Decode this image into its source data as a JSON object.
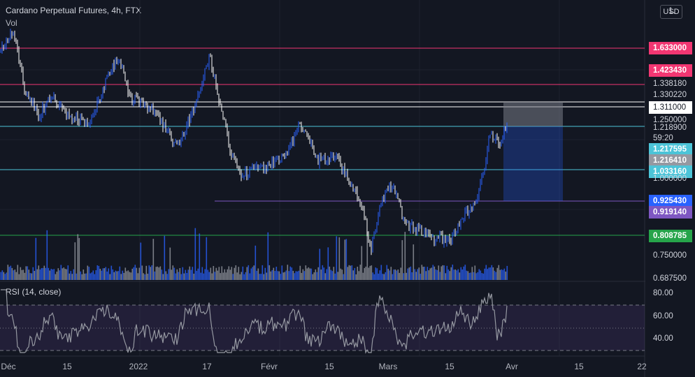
{
  "header": {
    "title": "Cardano Perpetual Futures, 4h, FTX",
    "vol": "Vol",
    "rsi": "RSI (14, close)",
    "currency": "USD",
    "top_tick": "1."
  },
  "price_axis": {
    "ticks": [
      "1.250000",
      "1.000000",
      "0.750000",
      "0.687500"
    ],
    "levels": [
      {
        "label": "1.633000",
        "color": "#f23672",
        "style": "filled"
      },
      {
        "label": "1.423430",
        "color": "#f23672",
        "style": "filled"
      },
      {
        "label": "1.338180",
        "color": "#d1d4dc",
        "style": "plain"
      },
      {
        "label": "1.330220",
        "color": "#d1d4dc",
        "style": "plain"
      },
      {
        "label": "1.311000",
        "color": "#ffffff",
        "style": "white"
      },
      {
        "label": "1.218900",
        "color": "#d1d4dc",
        "style": "plain"
      },
      {
        "label": "59:20",
        "color": "#d1d4dc",
        "style": "plain"
      },
      {
        "label": "1.217595",
        "color": "#4cc4d8",
        "style": "filled"
      },
      {
        "label": "1.216410",
        "color": "#9598a1",
        "style": "filled"
      },
      {
        "label": "1.033160",
        "color": "#4cc4d8",
        "style": "filled"
      },
      {
        "label": "0.925430",
        "color": "#2962ff",
        "style": "filled"
      },
      {
        "label": "0.919140",
        "color": "#7e57c2",
        "style": "filled"
      },
      {
        "label": "0.808785",
        "color": "#26a44a",
        "style": "filled"
      }
    ]
  },
  "rsi_axis": {
    "ticks": [
      "80.00",
      "60.00",
      "40.00"
    ]
  },
  "time_axis": {
    "labels": [
      "Déc",
      "15",
      "2022",
      "17",
      "Févr",
      "15",
      "Mars",
      "15",
      "Avr",
      "15",
      "22"
    ]
  },
  "colors": {
    "up": "#2962ff",
    "down": "#ffffff",
    "rsi": "#7e57c2",
    "background": "#131722"
  }
}
